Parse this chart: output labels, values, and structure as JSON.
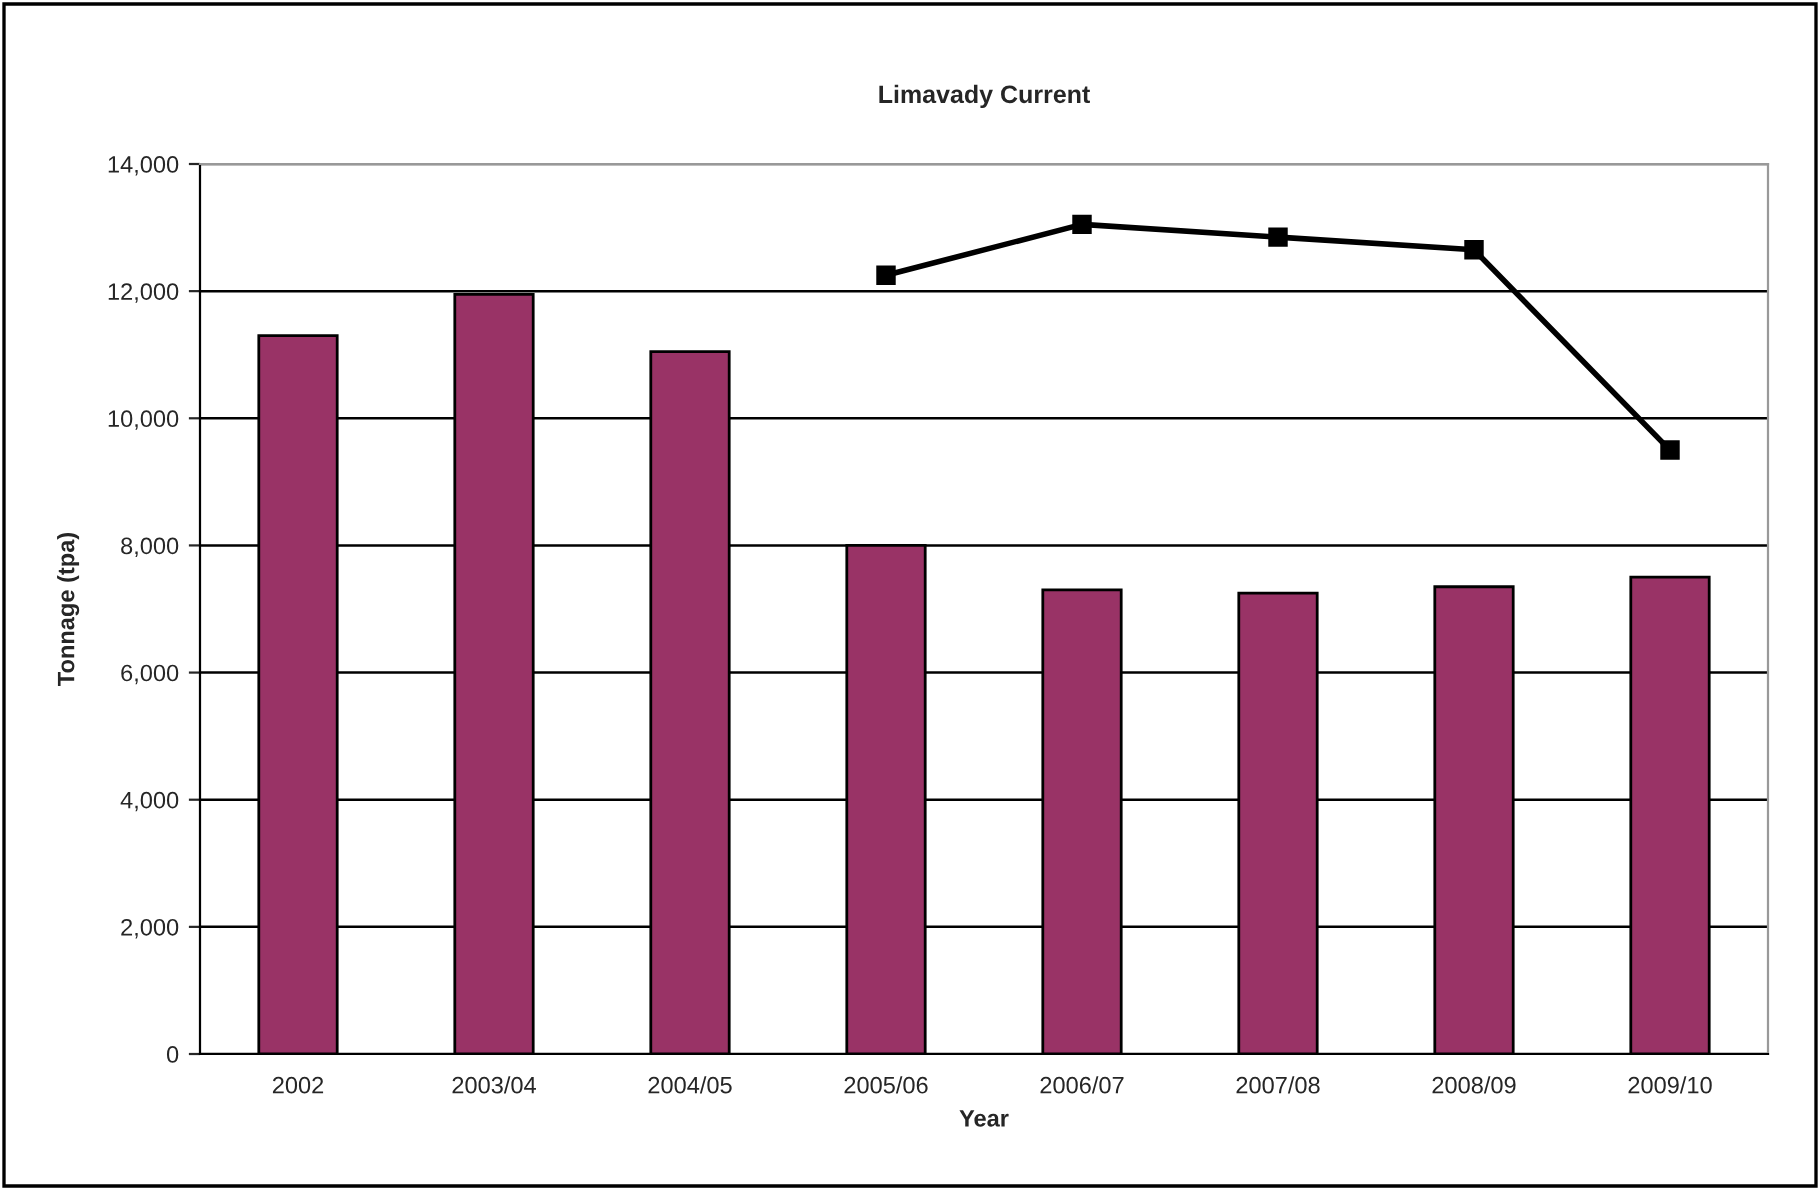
{
  "chart_data": {
    "type": "bar",
    "title": "Limavady Current",
    "xlabel": "Year",
    "ylabel": "Tonnage (tpa)",
    "categories": [
      "2002",
      "2003/04",
      "2004/05",
      "2005/06",
      "2006/07",
      "2007/08",
      "2008/09",
      "2009/10"
    ],
    "series": [
      {
        "color": "#993366",
        "values": [
          11300,
          11950,
          11050,
          8000,
          7300,
          7250,
          7350,
          7500
        ]
      },
      {
        "type": "line",
        "color": "#000000",
        "marker": "square",
        "line_style": "solid",
        "values": [
          null,
          null,
          null,
          12250,
          13050,
          12850,
          12650,
          9500
        ]
      }
    ],
    "ylim": [
      0,
      14000
    ],
    "yticks": [
      {
        "value": 0,
        "label": "0"
      },
      {
        "value": 2000,
        "label": "2,000"
      },
      {
        "value": 4000,
        "label": "4,000"
      },
      {
        "value": 6000,
        "label": "6,000"
      },
      {
        "value": 8000,
        "label": "8,000"
      },
      {
        "value": 10000,
        "label": "10,000"
      },
      {
        "value": 12000,
        "label": "12,000"
      },
      {
        "value": 14000,
        "label": "14,000"
      }
    ],
    "grid": "y",
    "legend": false
  }
}
